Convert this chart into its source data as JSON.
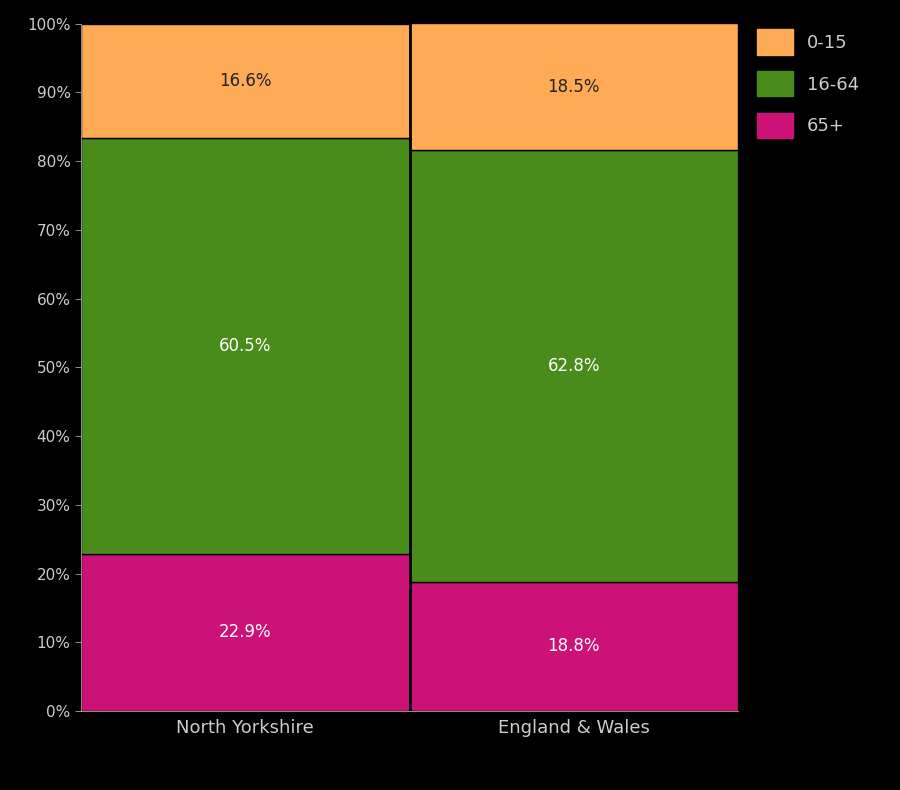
{
  "categories": [
    "North Yorkshire",
    "England & Wales"
  ],
  "segments": {
    "65+": [
      22.9,
      18.8
    ],
    "16-64": [
      60.5,
      62.8
    ],
    "0-15": [
      16.6,
      18.5
    ]
  },
  "colors": {
    "65+": "#CC1177",
    "16-64": "#4A8C1C",
    "0-15": "#FFAA55"
  },
  "segment_order": [
    "65+",
    "16-64",
    "0-15"
  ],
  "label_colors": {
    "65+": "white",
    "16-64": "white",
    "0-15": "#222222"
  },
  "background_color": "#000000",
  "text_color": "#cccccc",
  "bar_width": 1.0,
  "ylim": [
    0,
    100
  ],
  "ytick_labels": [
    "0%",
    "10%",
    "20%",
    "30%",
    "40%",
    "50%",
    "60%",
    "70%",
    "80%",
    "90%",
    "100%"
  ],
  "ytick_values": [
    0,
    10,
    20,
    30,
    40,
    50,
    60,
    70,
    80,
    90,
    100
  ],
  "legend_labels": [
    "0-15",
    "16-64",
    "65+"
  ],
  "legend_colors": [
    "#FFAA55",
    "#4A8C1C",
    "#CC1177"
  ],
  "bar_edge_color": "#000000",
  "separator_color": "#000000",
  "label_fontsize": 12,
  "tick_fontsize": 11,
  "xticklabel_fontsize": 13
}
